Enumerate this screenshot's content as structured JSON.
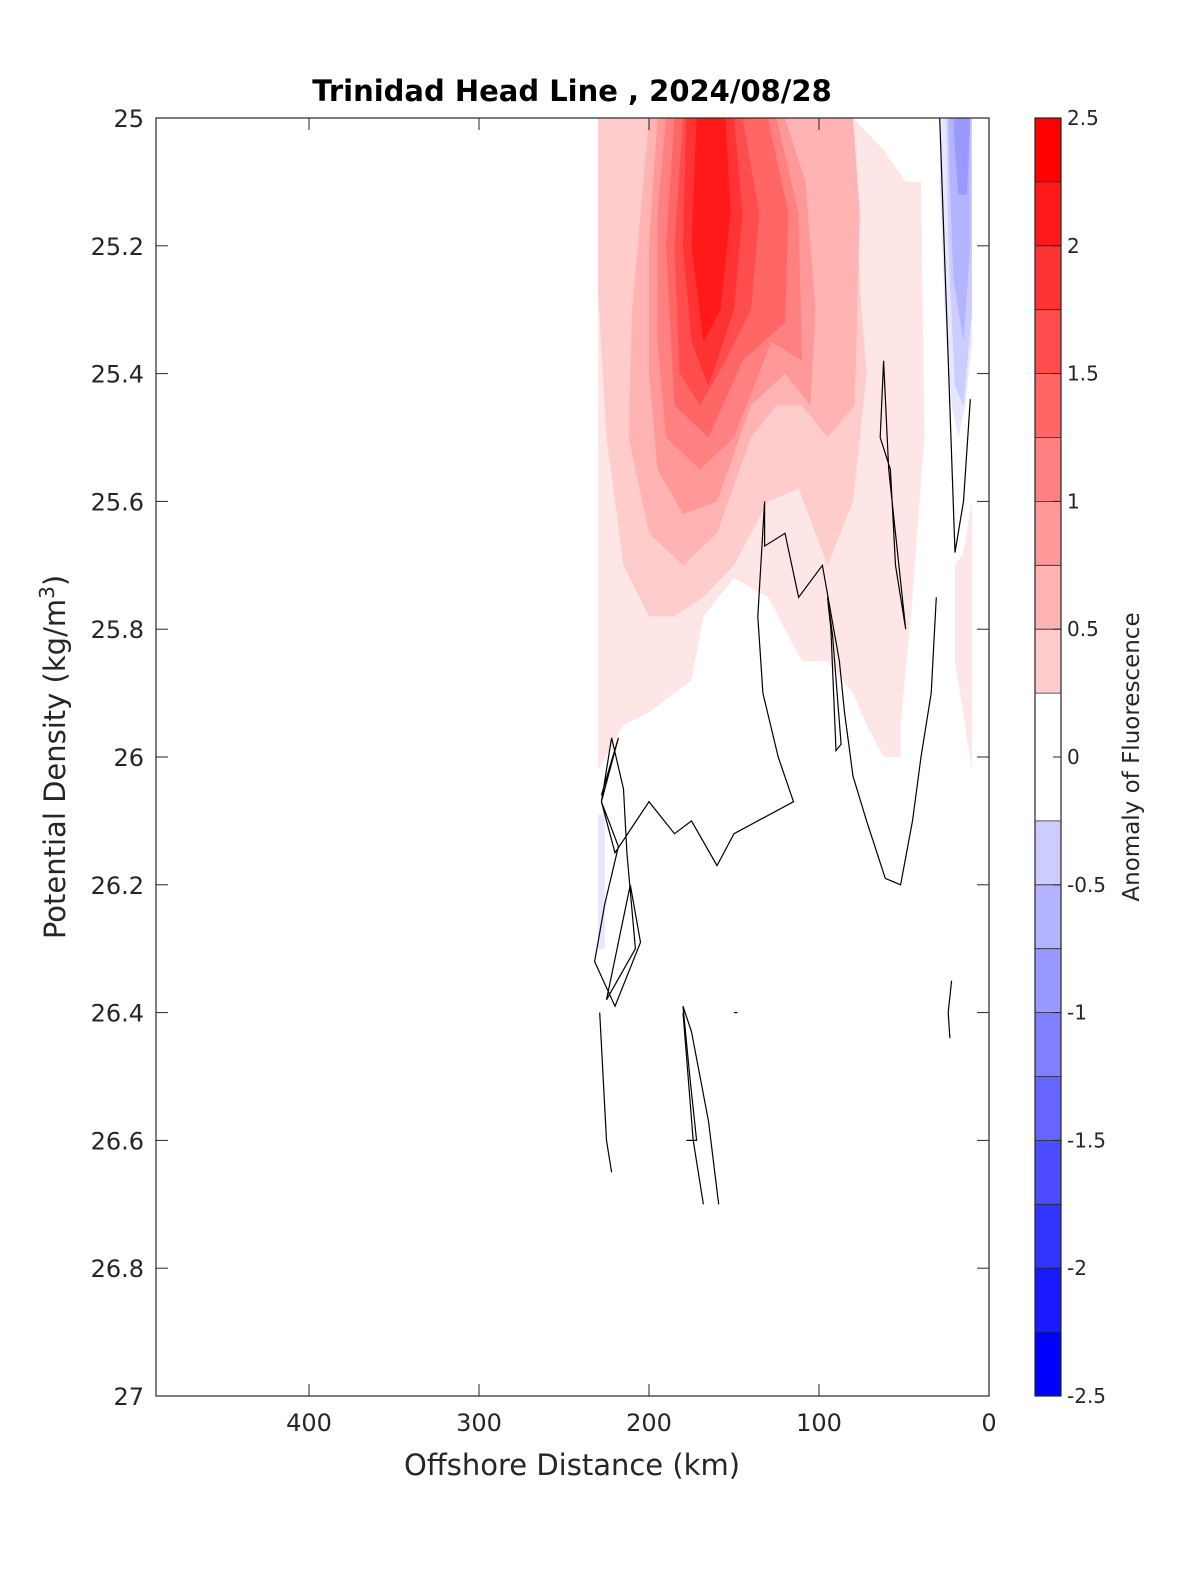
{
  "chart_data": {
    "type": "heatmap",
    "subtype": "filled-contour",
    "title": "Trinidad Head Line , 2024/08/28",
    "xlabel": "Offshore Distance (km)",
    "ylabel": "Potential Density (kg/m",
    "ylabel_superscript": "3",
    "ylabel_suffix": ")",
    "colorbar_label": "Anomaly of Fluorescence",
    "xlim": [
      490,
      0
    ],
    "x_reversed": true,
    "ylim": [
      25,
      27
    ],
    "y_reversed": true,
    "x_ticks": [
      400,
      300,
      200,
      100,
      0
    ],
    "y_ticks": [
      25,
      25.2,
      25.4,
      25.6,
      25.8,
      26,
      26.2,
      26.4,
      26.6,
      26.8,
      27
    ],
    "y_tick_labels": [
      "25",
      "25.2",
      "25.4",
      "25.6",
      "25.8",
      "26",
      "26.2",
      "26.4",
      "26.6",
      "26.8",
      "27"
    ],
    "colorbar_ticks": [
      2.5,
      2,
      1.5,
      1,
      0.5,
      0,
      -0.5,
      -1,
      -1.5,
      -2,
      -2.5
    ],
    "colorbar_tick_labels": [
      "2.5",
      "2",
      "1.5",
      "1",
      "0.5",
      "0",
      "-0.5",
      "-1",
      "-1.5",
      "-2",
      "-2.5"
    ],
    "levels": [
      -2.5,
      -2.25,
      -2,
      -1.75,
      -1.5,
      -1.25,
      -1,
      -0.75,
      -0.5,
      -0.25,
      0.25,
      0.5,
      0.75,
      1,
      1.25,
      1.5,
      1.75,
      2,
      2.25,
      2.5
    ],
    "colors": {
      "positive_max": "#ff0000",
      "negative_max": "#0000ff",
      "zero": "#ffffff",
      "zero_contour": "#000000"
    },
    "grid": false,
    "filled_regions": [
      {
        "level": 0.25,
        "points": [
          [
            230,
            25.0
          ],
          [
            80,
            25.0
          ],
          [
            62,
            25.05
          ],
          [
            49,
            25.1
          ],
          [
            40,
            25.1
          ],
          [
            38,
            25.5
          ],
          [
            45,
            25.75
          ],
          [
            52,
            25.95
          ],
          [
            52,
            26.0
          ],
          [
            62,
            26.0
          ],
          [
            72,
            25.95
          ],
          [
            80,
            25.9
          ],
          [
            95,
            25.85
          ],
          [
            110,
            25.85
          ],
          [
            130,
            25.75
          ],
          [
            150,
            25.72
          ],
          [
            168,
            25.78
          ],
          [
            175,
            25.88
          ],
          [
            200,
            25.93
          ],
          [
            215,
            25.95
          ],
          [
            230,
            26.02
          ]
        ]
      },
      {
        "level": 0.25,
        "points": [
          [
            20,
            25.7
          ],
          [
            15,
            25.68
          ],
          [
            10,
            25.6
          ],
          [
            10,
            26.02
          ],
          [
            20,
            25.85
          ]
        ]
      },
      {
        "level": 0.5,
        "points": [
          [
            230,
            25.0
          ],
          [
            85,
            25.0
          ],
          [
            78,
            25.15
          ],
          [
            75,
            25.3
          ],
          [
            72,
            25.4
          ],
          [
            80,
            25.6
          ],
          [
            95,
            25.7
          ],
          [
            112,
            25.58
          ],
          [
            130,
            25.6
          ],
          [
            150,
            25.7
          ],
          [
            168,
            25.75
          ],
          [
            185,
            25.78
          ],
          [
            200,
            25.78
          ],
          [
            215,
            25.7
          ],
          [
            225,
            25.5
          ],
          [
            230,
            25.27
          ]
        ]
      },
      {
        "level": 0.75,
        "points": [
          [
            200,
            25.0
          ],
          [
            80,
            25.0
          ],
          [
            76,
            25.15
          ],
          [
            79,
            25.45
          ],
          [
            95,
            25.5
          ],
          [
            110,
            25.45
          ],
          [
            125,
            25.45
          ],
          [
            140,
            25.5
          ],
          [
            160,
            25.65
          ],
          [
            180,
            25.7
          ],
          [
            200,
            25.65
          ],
          [
            212,
            25.5
          ],
          [
            210,
            25.3
          ],
          [
            205,
            25.15
          ]
        ]
      },
      {
        "level": 1.0,
        "points": [
          [
            195,
            25.0
          ],
          [
            120,
            25.0
          ],
          [
            108,
            25.1
          ],
          [
            102,
            25.3
          ],
          [
            105,
            25.45
          ],
          [
            120,
            25.4
          ],
          [
            140,
            25.45
          ],
          [
            160,
            25.6
          ],
          [
            180,
            25.62
          ],
          [
            195,
            25.55
          ],
          [
            200,
            25.4
          ],
          [
            200,
            25.2
          ]
        ]
      },
      {
        "level": 1.25,
        "points": [
          [
            190,
            25.0
          ],
          [
            125,
            25.0
          ],
          [
            112,
            25.15
          ],
          [
            110,
            25.38
          ],
          [
            128,
            25.35
          ],
          [
            150,
            25.5
          ],
          [
            170,
            25.55
          ],
          [
            190,
            25.5
          ],
          [
            195,
            25.35
          ],
          [
            195,
            25.15
          ]
        ]
      },
      {
        "level": 1.5,
        "points": [
          [
            185,
            25.0
          ],
          [
            130,
            25.0
          ],
          [
            118,
            25.15
          ],
          [
            120,
            25.32
          ],
          [
            145,
            25.38
          ],
          [
            165,
            25.5
          ],
          [
            185,
            25.45
          ],
          [
            190,
            25.2
          ]
        ]
      },
      {
        "level": 1.75,
        "points": [
          [
            180,
            25.0
          ],
          [
            145,
            25.0
          ],
          [
            135,
            25.15
          ],
          [
            140,
            25.3
          ],
          [
            155,
            25.38
          ],
          [
            170,
            25.45
          ],
          [
            182,
            25.4
          ],
          [
            185,
            25.2
          ]
        ]
      },
      {
        "level": 2.0,
        "points": [
          [
            178,
            25.0
          ],
          [
            150,
            25.0
          ],
          [
            145,
            25.15
          ],
          [
            150,
            25.3
          ],
          [
            165,
            25.42
          ],
          [
            175,
            25.35
          ],
          [
            180,
            25.2
          ]
        ]
      },
      {
        "level": 2.25,
        "points": [
          [
            172,
            25.0
          ],
          [
            155,
            25.0
          ],
          [
            152,
            25.15
          ],
          [
            158,
            25.3
          ],
          [
            168,
            25.35
          ],
          [
            175,
            25.2
          ]
        ]
      },
      {
        "level": -0.25,
        "points": [
          [
            28,
            25.0
          ],
          [
            10,
            25.0
          ],
          [
            10,
            25.35
          ],
          [
            14,
            25.45
          ],
          [
            18,
            25.5
          ],
          [
            22,
            25.45
          ],
          [
            26,
            25.3
          ],
          [
            29,
            25.1
          ]
        ]
      },
      {
        "level": -0.5,
        "points": [
          [
            25,
            25.0
          ],
          [
            10,
            25.0
          ],
          [
            10,
            25.3
          ],
          [
            15,
            25.45
          ],
          [
            20,
            25.42
          ],
          [
            24,
            25.2
          ]
        ]
      },
      {
        "level": -0.75,
        "points": [
          [
            24,
            25.0
          ],
          [
            11,
            25.0
          ],
          [
            11,
            25.2
          ],
          [
            15,
            25.35
          ],
          [
            21,
            25.25
          ],
          [
            23,
            25.1
          ]
        ]
      },
      {
        "level": -1.0,
        "points": [
          [
            21,
            25.0
          ],
          [
            11,
            25.0
          ],
          [
            13,
            25.12
          ],
          [
            18,
            25.12
          ],
          [
            20,
            25.05
          ]
        ]
      },
      {
        "level": -0.25,
        "points": [
          [
            230,
            26.09
          ],
          [
            226,
            26.09
          ],
          [
            226,
            26.3
          ],
          [
            230,
            26.3
          ]
        ]
      }
    ],
    "zero_contours": [
      [
        [
          29,
          25.0
        ],
        [
          20,
          25.68
        ],
        [
          15,
          25.6
        ],
        [
          11,
          25.44
        ]
      ],
      [
        [
          62,
          25.38
        ],
        [
          64,
          25.5
        ],
        [
          58,
          25.55
        ],
        [
          55,
          25.7
        ],
        [
          49,
          25.8
        ],
        [
          59,
          25.55
        ],
        [
          62,
          25.38
        ]
      ],
      [
        [
          95,
          25.75
        ],
        [
          93,
          25.8
        ],
        [
          90,
          25.99
        ],
        [
          87,
          25.98
        ],
        [
          92,
          25.81
        ],
        [
          95,
          25.75
        ]
      ],
      [
        [
          31,
          25.75
        ],
        [
          34,
          25.9
        ],
        [
          40,
          26.0
        ],
        [
          45,
          26.1
        ],
        [
          52,
          26.2
        ],
        [
          61,
          26.19
        ],
        [
          72,
          26.1
        ],
        [
          80,
          26.03
        ],
        [
          85,
          25.93
        ],
        [
          88,
          25.85
        ],
        [
          98,
          25.7
        ],
        [
          112,
          25.75
        ],
        [
          120,
          25.65
        ],
        [
          132,
          25.67
        ],
        [
          132,
          25.6
        ],
        [
          136,
          25.78
        ],
        [
          133,
          25.9
        ],
        [
          124,
          26.0
        ],
        [
          115,
          26.07
        ],
        [
          150,
          26.12
        ],
        [
          160,
          26.17
        ],
        [
          175,
          26.1
        ],
        [
          185,
          26.12
        ],
        [
          200,
          26.07
        ],
        [
          220,
          26.15
        ],
        [
          228,
          26.07
        ],
        [
          222,
          25.97
        ],
        [
          215,
          26.05
        ],
        [
          213,
          26.15
        ],
        [
          208,
          26.3
        ],
        [
          225,
          26.38
        ],
        [
          211,
          26.2
        ],
        [
          205,
          26.29
        ],
        [
          220,
          26.39
        ],
        [
          232,
          26.32
        ],
        [
          226,
          26.23
        ],
        [
          218,
          26.14
        ],
        [
          228,
          26.07
        ],
        [
          218,
          25.97
        ],
        [
          228,
          26.06
        ]
      ],
      [
        [
          229,
          26.4
        ],
        [
          225,
          26.6
        ],
        [
          222,
          26.65
        ]
      ],
      [
        [
          180,
          26.4
        ],
        [
          174,
          26.6
        ],
        [
          168,
          26.7
        ]
      ],
      [
        [
          159,
          26.7
        ],
        [
          165,
          26.57
        ],
        [
          170,
          26.5
        ],
        [
          175,
          26.43
        ],
        [
          180,
          26.39
        ],
        [
          176,
          26.5
        ],
        [
          172,
          26.6
        ],
        [
          178,
          26.6
        ]
      ],
      [
        [
          22,
          26.35
        ],
        [
          24,
          26.4
        ],
        [
          23,
          26.44
        ]
      ],
      [
        [
          150,
          26.4
        ],
        [
          148,
          26.4
        ]
      ]
    ]
  }
}
